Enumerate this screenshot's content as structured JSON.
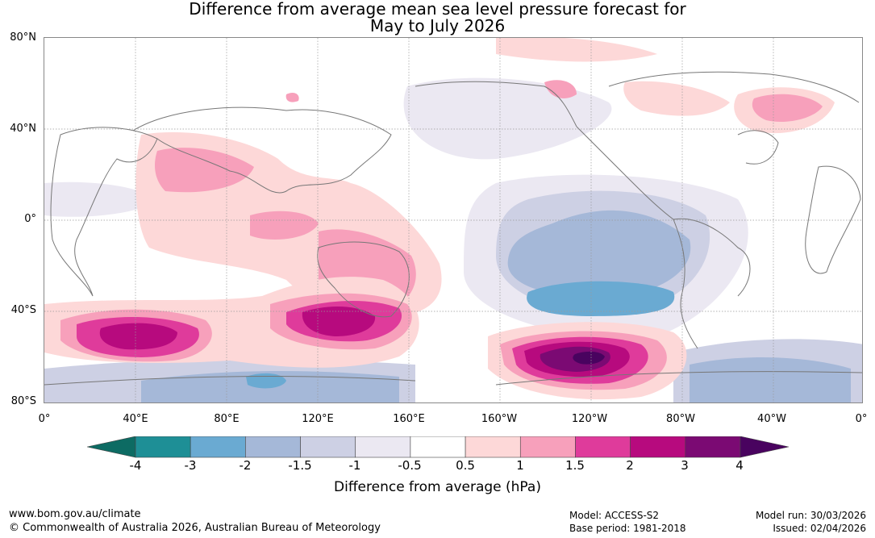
{
  "title": {
    "line1": "Difference from average mean sea level pressure forecast for",
    "line2": "May to July 2026"
  },
  "map": {
    "lat_labels": [
      "80°N",
      "40°N",
      "0°",
      "40°S",
      "80°S"
    ],
    "lon_labels": [
      "0°",
      "40°E",
      "80°E",
      "120°E",
      "160°E",
      "160°W",
      "120°W",
      "80°W",
      "40°W",
      "0°"
    ]
  },
  "colorbar": {
    "ticks": [
      "-4",
      "-3",
      "-2",
      "-1.5",
      "-1",
      "-0.5",
      "0.5",
      "1",
      "1.5",
      "2",
      "3",
      "4"
    ],
    "colors": [
      "#1e8f96",
      "#6aaad2",
      "#a5b8d8",
      "#cdd0e4",
      "#ebe8f2",
      "#ffffff",
      "#fdd8d8",
      "#f7a0bb",
      "#df3b9b",
      "#b70a7e",
      "#7b0a73"
    ],
    "under_color": "#0d6b63",
    "over_color": "#49035f",
    "label": "Difference from average (hPa)"
  },
  "footer": {
    "website": "www.bom.gov.au/climate",
    "copyright": "© Commonwealth of Australia 2026, Australian Bureau of Meteorology",
    "model": "Model: ACCESS-S2",
    "base_period": "Base period: 1981-2018",
    "model_run": "Model run: 30/03/2026",
    "issued": "Issued: 02/04/2026"
  }
}
